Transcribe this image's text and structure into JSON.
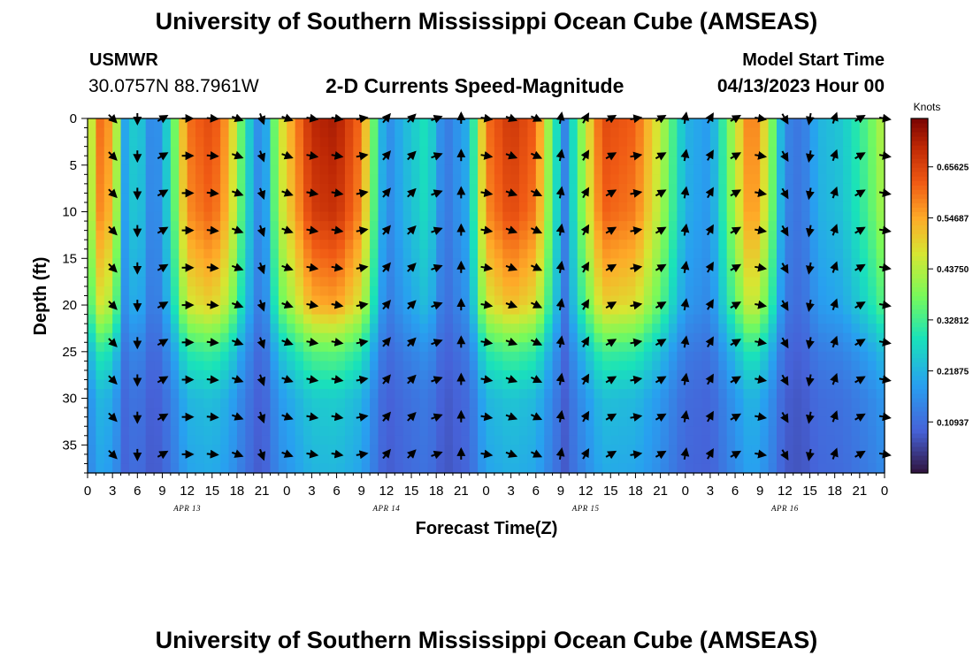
{
  "header": {
    "title": "University of Southern Mississippi Ocean Cube (AMSEAS)",
    "station": "USMWR",
    "coords": "30.0757N  88.7961W",
    "subtitle": "2-D Currents Speed-Magnitude",
    "model_label": "Model Start Time",
    "model_time": "04/13/2023 Hour 00"
  },
  "footer": {
    "title": "University of Southern Mississippi Ocean Cube (AMSEAS)"
  },
  "chart_data": {
    "type": "heatmap",
    "title": "2-D Currents Speed-Magnitude",
    "xlabel": "Forecast Time(Z)",
    "ylabel": "Depth (ft)",
    "x_range_hours": [
      0,
      96
    ],
    "y_range_ft": [
      0,
      38
    ],
    "x_ticks": [
      {
        "hour": 0,
        "label": "0"
      },
      {
        "hour": 3,
        "label": "3"
      },
      {
        "hour": 6,
        "label": "6"
      },
      {
        "hour": 9,
        "label": "9"
      },
      {
        "hour": 12,
        "label": "12"
      },
      {
        "hour": 15,
        "label": "15"
      },
      {
        "hour": 18,
        "label": "18"
      },
      {
        "hour": 21,
        "label": "21"
      },
      {
        "hour": 24,
        "label": "0"
      },
      {
        "hour": 27,
        "label": "3"
      },
      {
        "hour": 30,
        "label": "6"
      },
      {
        "hour": 33,
        "label": "9"
      },
      {
        "hour": 36,
        "label": "12"
      },
      {
        "hour": 39,
        "label": "15"
      },
      {
        "hour": 42,
        "label": "18"
      },
      {
        "hour": 45,
        "label": "21"
      },
      {
        "hour": 48,
        "label": "0"
      },
      {
        "hour": 51,
        "label": "3"
      },
      {
        "hour": 54,
        "label": "6"
      },
      {
        "hour": 57,
        "label": "9"
      },
      {
        "hour": 60,
        "label": "12"
      },
      {
        "hour": 63,
        "label": "15"
      },
      {
        "hour": 66,
        "label": "18"
      },
      {
        "hour": 69,
        "label": "21"
      },
      {
        "hour": 72,
        "label": "0"
      },
      {
        "hour": 75,
        "label": "3"
      },
      {
        "hour": 78,
        "label": "6"
      },
      {
        "hour": 81,
        "label": "9"
      },
      {
        "hour": 84,
        "label": "12"
      },
      {
        "hour": 87,
        "label": "15"
      },
      {
        "hour": 90,
        "label": "18"
      },
      {
        "hour": 93,
        "label": "21"
      },
      {
        "hour": 96,
        "label": "0"
      }
    ],
    "date_labels": [
      {
        "hour": 12,
        "label": "APR 13"
      },
      {
        "hour": 36,
        "label": "APR 14"
      },
      {
        "hour": 60,
        "label": "APR 15"
      },
      {
        "hour": 84,
        "label": "APR 16"
      }
    ],
    "y_ticks": [
      0,
      5,
      10,
      15,
      20,
      25,
      30,
      35
    ],
    "colorbar": {
      "label": "Knots",
      "range": [
        0,
        0.76
      ],
      "ticks": [
        "0.10937",
        "0.21875",
        "0.32812",
        "0.43750",
        "0.54687",
        "0.65625"
      ],
      "tick_values": [
        0.10937,
        0.21875,
        0.32812,
        0.4375,
        0.54687,
        0.65625
      ]
    },
    "speed_profile_by_hour": [
      {
        "hour": 0,
        "speed": 0.3
      },
      {
        "hour": 1,
        "speed": 0.62
      },
      {
        "hour": 3,
        "speed": 0.55
      },
      {
        "hour": 4.5,
        "speed": 0.2
      },
      {
        "hour": 6,
        "speed": 0.28
      },
      {
        "hour": 8,
        "speed": 0.12
      },
      {
        "hour": 10,
        "speed": 0.3
      },
      {
        "hour": 12,
        "speed": 0.6
      },
      {
        "hour": 15,
        "speed": 0.65
      },
      {
        "hour": 17,
        "speed": 0.55
      },
      {
        "hour": 19,
        "speed": 0.3
      },
      {
        "hour": 21,
        "speed": 0.12
      },
      {
        "hour": 23,
        "speed": 0.45
      },
      {
        "hour": 27,
        "speed": 0.7
      },
      {
        "hour": 30,
        "speed": 0.72
      },
      {
        "hour": 33,
        "speed": 0.6
      },
      {
        "hour": 35,
        "speed": 0.28
      },
      {
        "hour": 36,
        "speed": 0.15
      },
      {
        "hour": 38,
        "speed": 0.22
      },
      {
        "hour": 41,
        "speed": 0.3
      },
      {
        "hour": 43,
        "speed": 0.12
      },
      {
        "hour": 46,
        "speed": 0.22
      },
      {
        "hour": 48,
        "speed": 0.6
      },
      {
        "hour": 51,
        "speed": 0.68
      },
      {
        "hour": 54,
        "speed": 0.62
      },
      {
        "hour": 56,
        "speed": 0.35
      },
      {
        "hour": 57.5,
        "speed": 0.15
      },
      {
        "hour": 59,
        "speed": 0.35
      },
      {
        "hour": 62,
        "speed": 0.65
      },
      {
        "hour": 66,
        "speed": 0.62
      },
      {
        "hour": 69,
        "speed": 0.45
      },
      {
        "hour": 72,
        "speed": 0.22
      },
      {
        "hour": 75,
        "speed": 0.18
      },
      {
        "hour": 78,
        "speed": 0.45
      },
      {
        "hour": 80,
        "speed": 0.62
      },
      {
        "hour": 82,
        "speed": 0.45
      },
      {
        "hour": 84,
        "speed": 0.15
      },
      {
        "hour": 86,
        "speed": 0.12
      },
      {
        "hour": 88,
        "speed": 0.22
      },
      {
        "hour": 91,
        "speed": 0.25
      },
      {
        "hour": 94,
        "speed": 0.35
      },
      {
        "hour": 96,
        "speed": 0.45
      }
    ],
    "depth_attenuation": [
      {
        "depth": 0,
        "factor": 1.0
      },
      {
        "depth": 10,
        "factor": 0.95
      },
      {
        "depth": 20,
        "factor": 0.75
      },
      {
        "depth": 25,
        "factor": 0.45
      },
      {
        "depth": 30,
        "factor": 0.3
      },
      {
        "depth": 38,
        "factor": 0.25
      }
    ],
    "arrow_hours": [
      3,
      6,
      9,
      12,
      15,
      18,
      21,
      24,
      27,
      30,
      33,
      36,
      39,
      42,
      45,
      48,
      51,
      54,
      57,
      60,
      63,
      66,
      69,
      72,
      75,
      78,
      81,
      84,
      87,
      90,
      93,
      96
    ],
    "arrow_depths": [
      0,
      4,
      8,
      12,
      16,
      20,
      24,
      28,
      32,
      36
    ],
    "direction_by_hour_deg": [
      {
        "hour": 3,
        "dir": 135
      },
      {
        "hour": 6,
        "dir": 180
      },
      {
        "hour": 9,
        "dir": 60
      },
      {
        "hour": 12,
        "dir": 90
      },
      {
        "hour": 15,
        "dir": 95
      },
      {
        "hour": 18,
        "dir": 110
      },
      {
        "hour": 21,
        "dir": 160
      },
      {
        "hour": 24,
        "dir": 110
      },
      {
        "hour": 27,
        "dir": 100
      },
      {
        "hour": 30,
        "dir": 100
      },
      {
        "hour": 33,
        "dir": 80
      },
      {
        "hour": 36,
        "dir": 40
      },
      {
        "hour": 39,
        "dir": 45
      },
      {
        "hour": 42,
        "dir": 70
      },
      {
        "hour": 45,
        "dir": 0
      },
      {
        "hour": 48,
        "dir": 100
      },
      {
        "hour": 51,
        "dir": 110
      },
      {
        "hour": 54,
        "dir": 115
      },
      {
        "hour": 57,
        "dir": 10
      },
      {
        "hour": 60,
        "dir": 30
      },
      {
        "hour": 63,
        "dir": 60
      },
      {
        "hour": 66,
        "dir": 80
      },
      {
        "hour": 69,
        "dir": 60
      },
      {
        "hour": 72,
        "dir": 10
      },
      {
        "hour": 75,
        "dir": 30
      },
      {
        "hour": 78,
        "dir": 60
      },
      {
        "hour": 81,
        "dir": 100
      },
      {
        "hour": 84,
        "dir": 150
      },
      {
        "hour": 87,
        "dir": 190
      },
      {
        "hour": 90,
        "dir": 20
      },
      {
        "hour": 93,
        "dir": 60
      },
      {
        "hour": 96,
        "dir": 100
      }
    ]
  }
}
